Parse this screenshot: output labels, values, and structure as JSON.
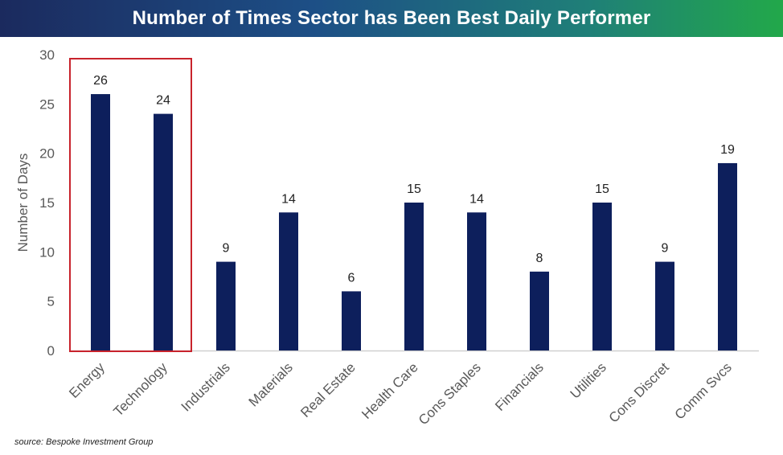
{
  "title": "Number of Times Sector has Been Best Daily Performer",
  "source": "source: Bespoke Investment Group",
  "colors": {
    "bar": "#0d1f5c",
    "highlight_box": "#c8232c",
    "axis": "#d0d0d0",
    "title_gradient": [
      "#1b2a5e",
      "#22a84a"
    ]
  },
  "highlight": {
    "categories": [
      "Energy",
      "Technology"
    ],
    "style": "red outlined box"
  },
  "chart_data": {
    "type": "bar",
    "title": "Number of Times Sector has Been Best Daily Performer",
    "xlabel": "",
    "ylabel": "Number of Days",
    "ylim": [
      0,
      30
    ],
    "yticks": [
      0,
      5,
      10,
      15,
      20,
      25,
      30
    ],
    "grid": false,
    "legend": "none",
    "categories": [
      "Energy",
      "Technology",
      "Industrials",
      "Materials",
      "Real Estate",
      "Health Care",
      "Cons Staples",
      "Financials",
      "Utilities",
      "Cons Discret",
      "Comm Svcs"
    ],
    "values": [
      26,
      24,
      9,
      14,
      6,
      15,
      14,
      8,
      15,
      9,
      19
    ],
    "data_labels": true
  }
}
